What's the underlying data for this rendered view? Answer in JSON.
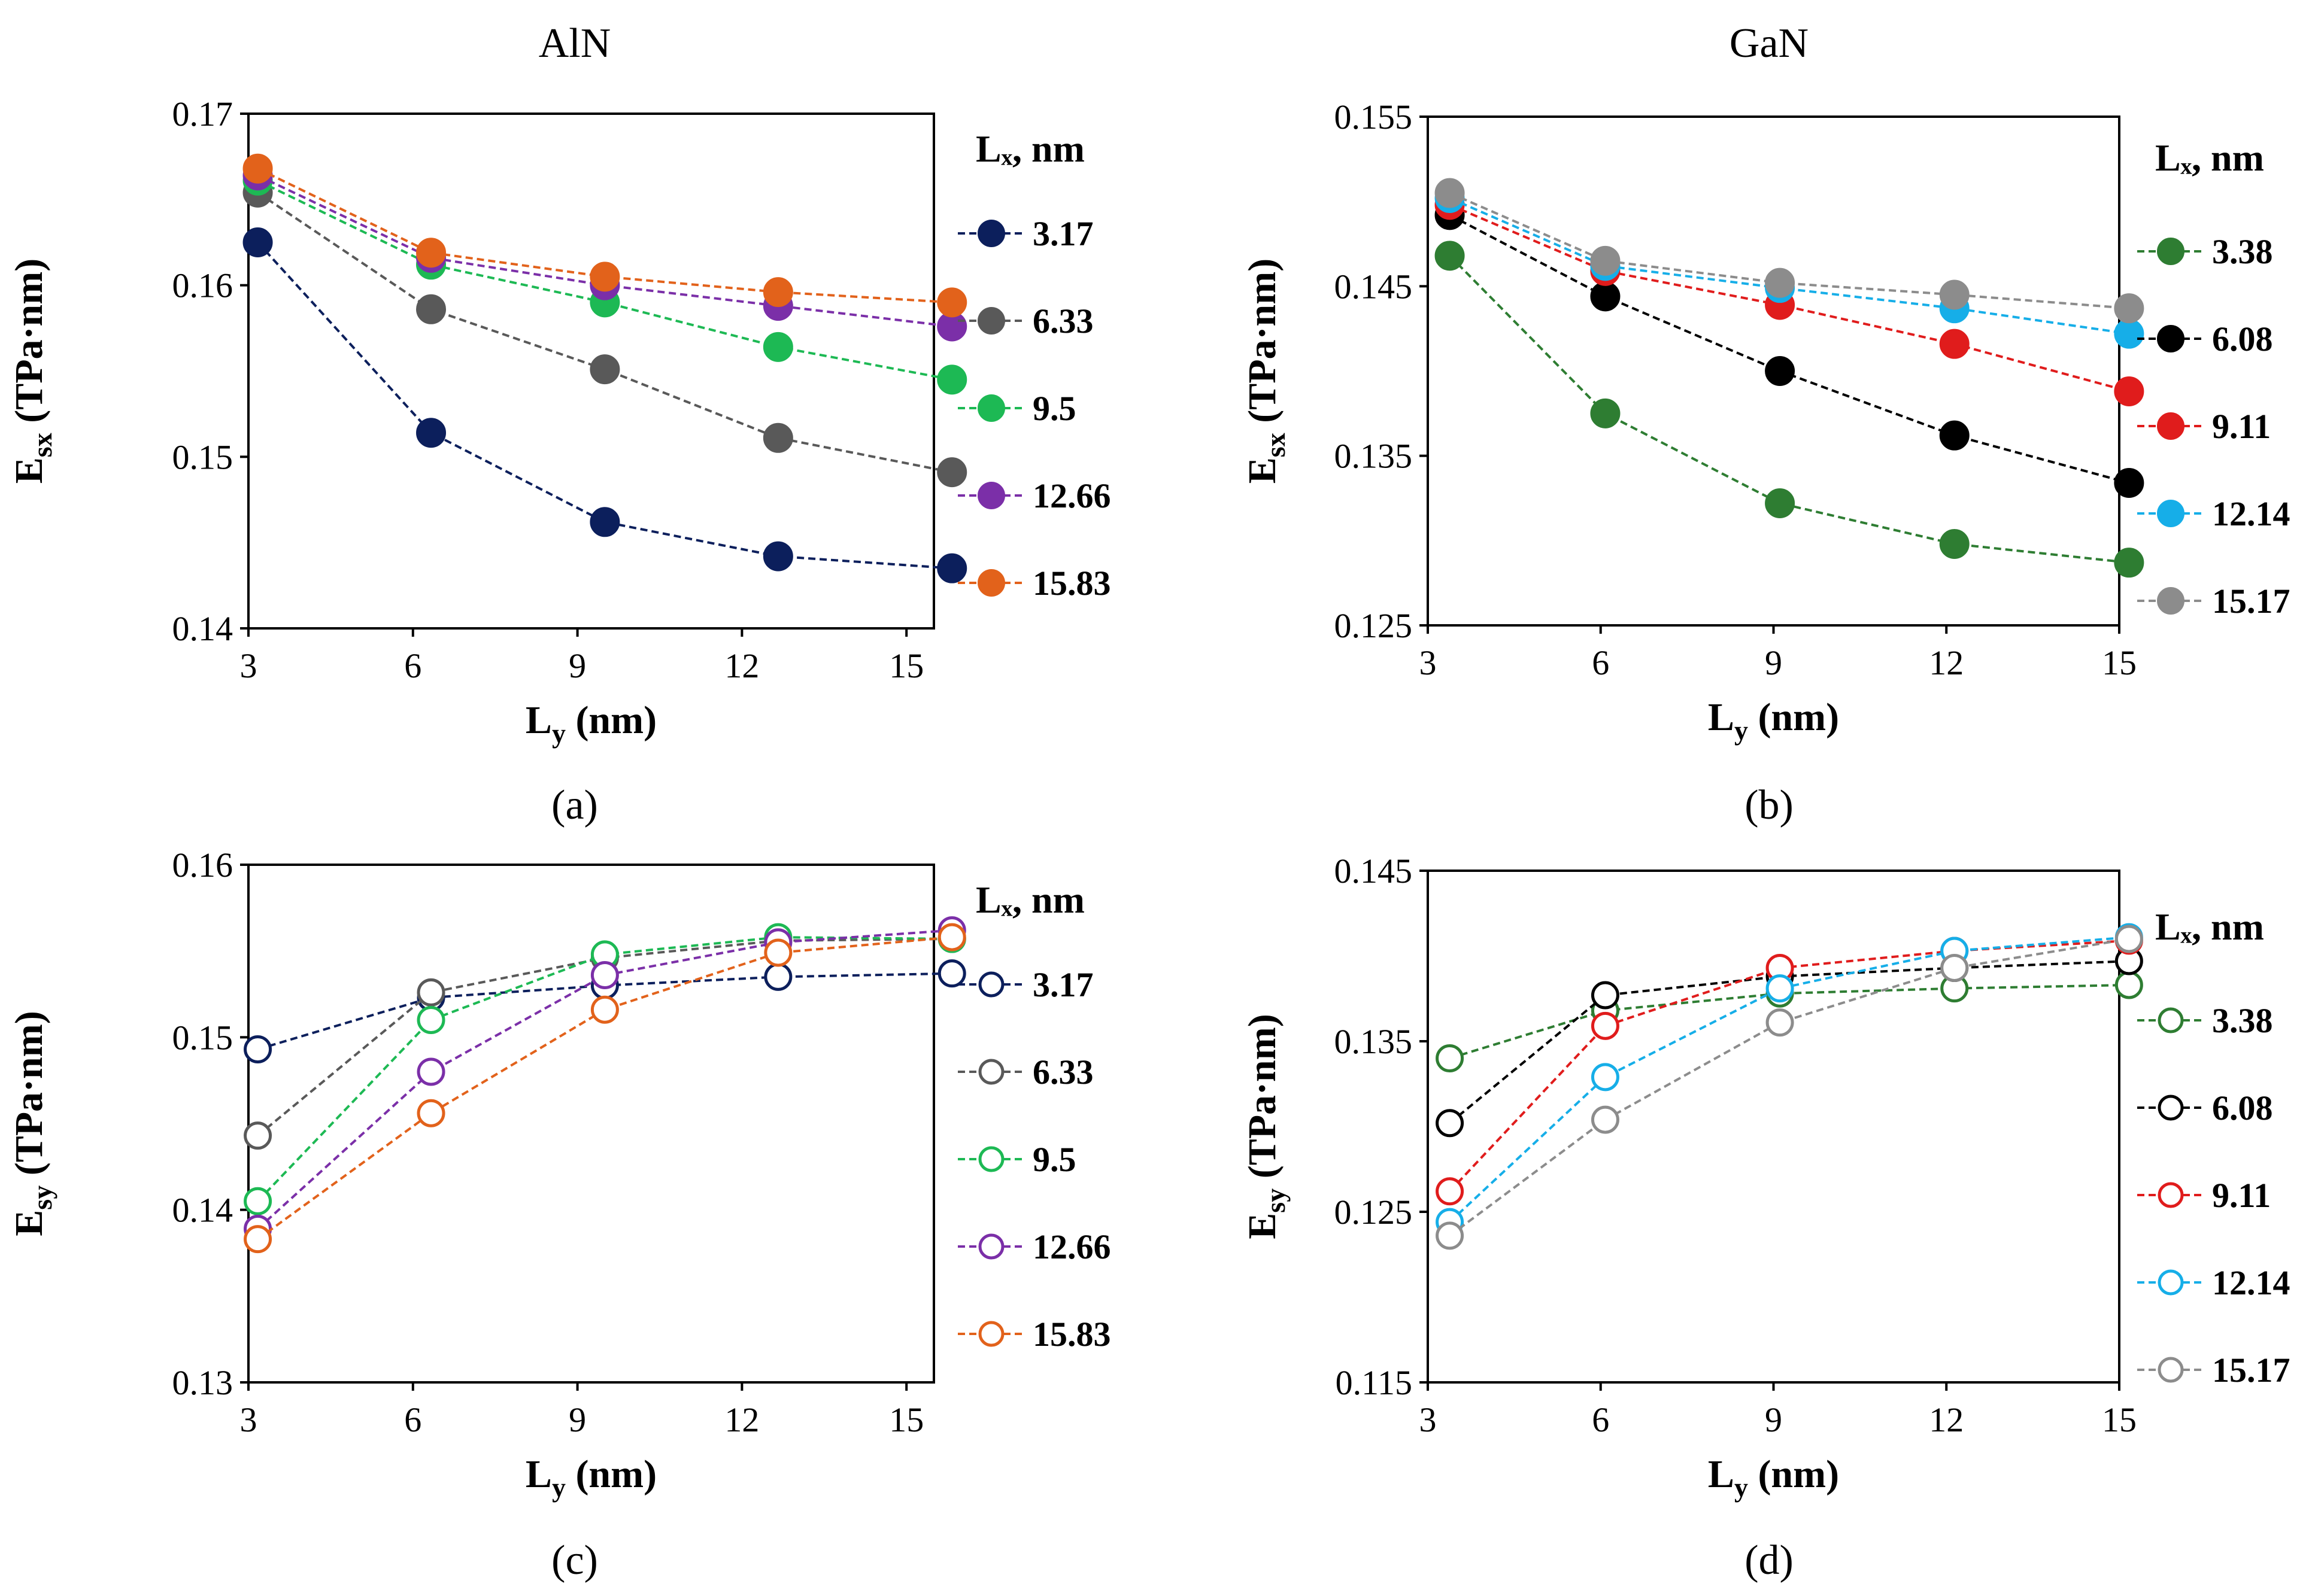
{
  "figure": {
    "column_titles": [
      "AlN",
      "GaN"
    ],
    "panel_labels": [
      "(a)",
      "(b)",
      "(c)",
      "(d)"
    ]
  },
  "chart_data": [
    {
      "id": "a",
      "type": "line",
      "marker": "filled",
      "xlabel": "L",
      "xlabel_sub": "y",
      "xlabel_tail": " (nm)",
      "ylabel": "E",
      "ylabel_sub": "sx",
      "ylabel_tail": " (TPa·nm)",
      "xlim": [
        3,
        15.5
      ],
      "ylim": [
        0.14,
        0.17
      ],
      "xticks": [
        3,
        6,
        9,
        12,
        15
      ],
      "yticks": [
        0.14,
        0.15,
        0.16,
        0.17
      ],
      "ytick_labels": [
        "0.14",
        "0.15",
        "0.16",
        "0.17"
      ],
      "legend_title": "Lₓ, nm",
      "x": [
        3.17,
        6.33,
        9.5,
        12.66,
        15.83
      ],
      "series": [
        {
          "name": "3.17",
          "color": "#0c1f5c",
          "values": [
            0.1625,
            0.1514,
            0.1462,
            0.1442,
            0.1435
          ]
        },
        {
          "name": "6.33",
          "color": "#595959",
          "values": [
            0.1654,
            0.1586,
            0.1551,
            0.1511,
            0.1491
          ]
        },
        {
          "name": "9.5",
          "color": "#1db954",
          "values": [
            0.1661,
            0.1612,
            0.159,
            0.1564,
            0.1545
          ]
        },
        {
          "name": "12.66",
          "color": "#7b2fa8",
          "values": [
            0.1664,
            0.1616,
            0.16,
            0.1588,
            0.1576
          ]
        },
        {
          "name": "15.83",
          "color": "#e2621b",
          "values": [
            0.1668,
            0.1619,
            0.1605,
            0.1596,
            0.159
          ]
        }
      ]
    },
    {
      "id": "b",
      "type": "line",
      "marker": "filled",
      "xlabel": "L",
      "xlabel_sub": "y",
      "xlabel_tail": " (nm)",
      "ylabel": "E",
      "ylabel_sub": "sx",
      "ylabel_tail": " (TPa·nm)",
      "xlim": [
        3,
        15
      ],
      "ylim": [
        0.125,
        0.155
      ],
      "xticks": [
        3,
        6,
        9,
        12,
        15
      ],
      "yticks": [
        0.125,
        0.135,
        0.145,
        0.155
      ],
      "ytick_labels": [
        "0.125",
        "0.135",
        "0.145",
        "0.155"
      ],
      "legend_title": "Lₓ, nm",
      "x": [
        3.38,
        6.08,
        9.11,
        12.14,
        15.17
      ],
      "series": [
        {
          "name": "3.38",
          "color": "#2e7d32",
          "values": [
            0.1468,
            0.1375,
            0.1322,
            0.1298,
            0.1287
          ]
        },
        {
          "name": "6.08",
          "color": "#000000",
          "values": [
            0.1492,
            0.1444,
            0.14,
            0.1362,
            0.1334
          ]
        },
        {
          "name": "9.11",
          "color": "#e01c1c",
          "values": [
            0.1498,
            0.1459,
            0.1439,
            0.1416,
            0.1388
          ]
        },
        {
          "name": "12.14",
          "color": "#16aee8",
          "values": [
            0.1502,
            0.1462,
            0.1449,
            0.1437,
            0.1422
          ]
        },
        {
          "name": "15.17",
          "color": "#8c8c8c",
          "values": [
            0.1505,
            0.1465,
            0.1452,
            0.1445,
            0.1437
          ]
        }
      ]
    },
    {
      "id": "c",
      "type": "line",
      "marker": "open",
      "xlabel": "L",
      "xlabel_sub": "y",
      "xlabel_tail": " (nm)",
      "ylabel": "E",
      "ylabel_sub": "sy",
      "ylabel_tail": " (TPa·nm)",
      "xlim": [
        3,
        15.5
      ],
      "ylim": [
        0.13,
        0.16
      ],
      "xticks": [
        3,
        6,
        9,
        12,
        15
      ],
      "yticks": [
        0.13,
        0.14,
        0.15,
        0.16
      ],
      "ytick_labels": [
        "0.13",
        "0.14",
        "0.15",
        "0.16"
      ],
      "legend_title": "Lₓ, nm",
      "x": [
        3.17,
        6.33,
        9.5,
        12.66,
        15.83
      ],
      "series": [
        {
          "name": "3.17",
          "color": "#0c1f5c",
          "values": [
            0.1493,
            0.1523,
            0.153,
            0.1535,
            0.1537
          ]
        },
        {
          "name": "6.33",
          "color": "#595959",
          "values": [
            0.1443,
            0.1526,
            0.1546,
            0.1556,
            0.1557
          ]
        },
        {
          "name": "9.5",
          "color": "#1db954",
          "values": [
            0.1405,
            0.151,
            0.1548,
            0.1558,
            0.1557
          ]
        },
        {
          "name": "12.66",
          "color": "#7b2fa8",
          "values": [
            0.1389,
            0.148,
            0.1536,
            0.1555,
            0.1562
          ]
        },
        {
          "name": "15.83",
          "color": "#e2621b",
          "values": [
            0.1383,
            0.1456,
            0.1516,
            0.1549,
            0.1558
          ]
        }
      ]
    },
    {
      "id": "d",
      "type": "line",
      "marker": "open",
      "xlabel": "L",
      "xlabel_sub": "y",
      "xlabel_tail": " (nm)",
      "ylabel": "E",
      "ylabel_sub": "sy",
      "ylabel_tail": " (TPa·nm)",
      "xlim": [
        3,
        15
      ],
      "ylim": [
        0.115,
        0.145
      ],
      "xticks": [
        3,
        6,
        9,
        12,
        15
      ],
      "yticks": [
        0.115,
        0.125,
        0.135,
        0.145
      ],
      "ytick_labels": [
        "0.115",
        "0.125",
        "0.135",
        "0.145"
      ],
      "legend_title": "Lₓ, nm",
      "x": [
        3.38,
        6.08,
        9.11,
        12.14,
        15.17
      ],
      "series": [
        {
          "name": "3.38",
          "color": "#2e7d32",
          "values": [
            0.134,
            0.1368,
            0.1378,
            0.1381,
            0.1383
          ]
        },
        {
          "name": "6.08",
          "color": "#000000",
          "values": [
            0.1302,
            0.1377,
            0.1388,
            0.1393,
            0.1397
          ]
        },
        {
          "name": "9.11",
          "color": "#e01c1c",
          "values": [
            0.1262,
            0.1359,
            0.1393,
            0.1403,
            0.1409
          ]
        },
        {
          "name": "12.14",
          "color": "#16aee8",
          "values": [
            0.1244,
            0.1329,
            0.1381,
            0.1403,
            0.1411
          ]
        },
        {
          "name": "15.17",
          "color": "#8c8c8c",
          "values": [
            0.1236,
            0.1304,
            0.1361,
            0.1393,
            0.141
          ]
        }
      ]
    }
  ]
}
